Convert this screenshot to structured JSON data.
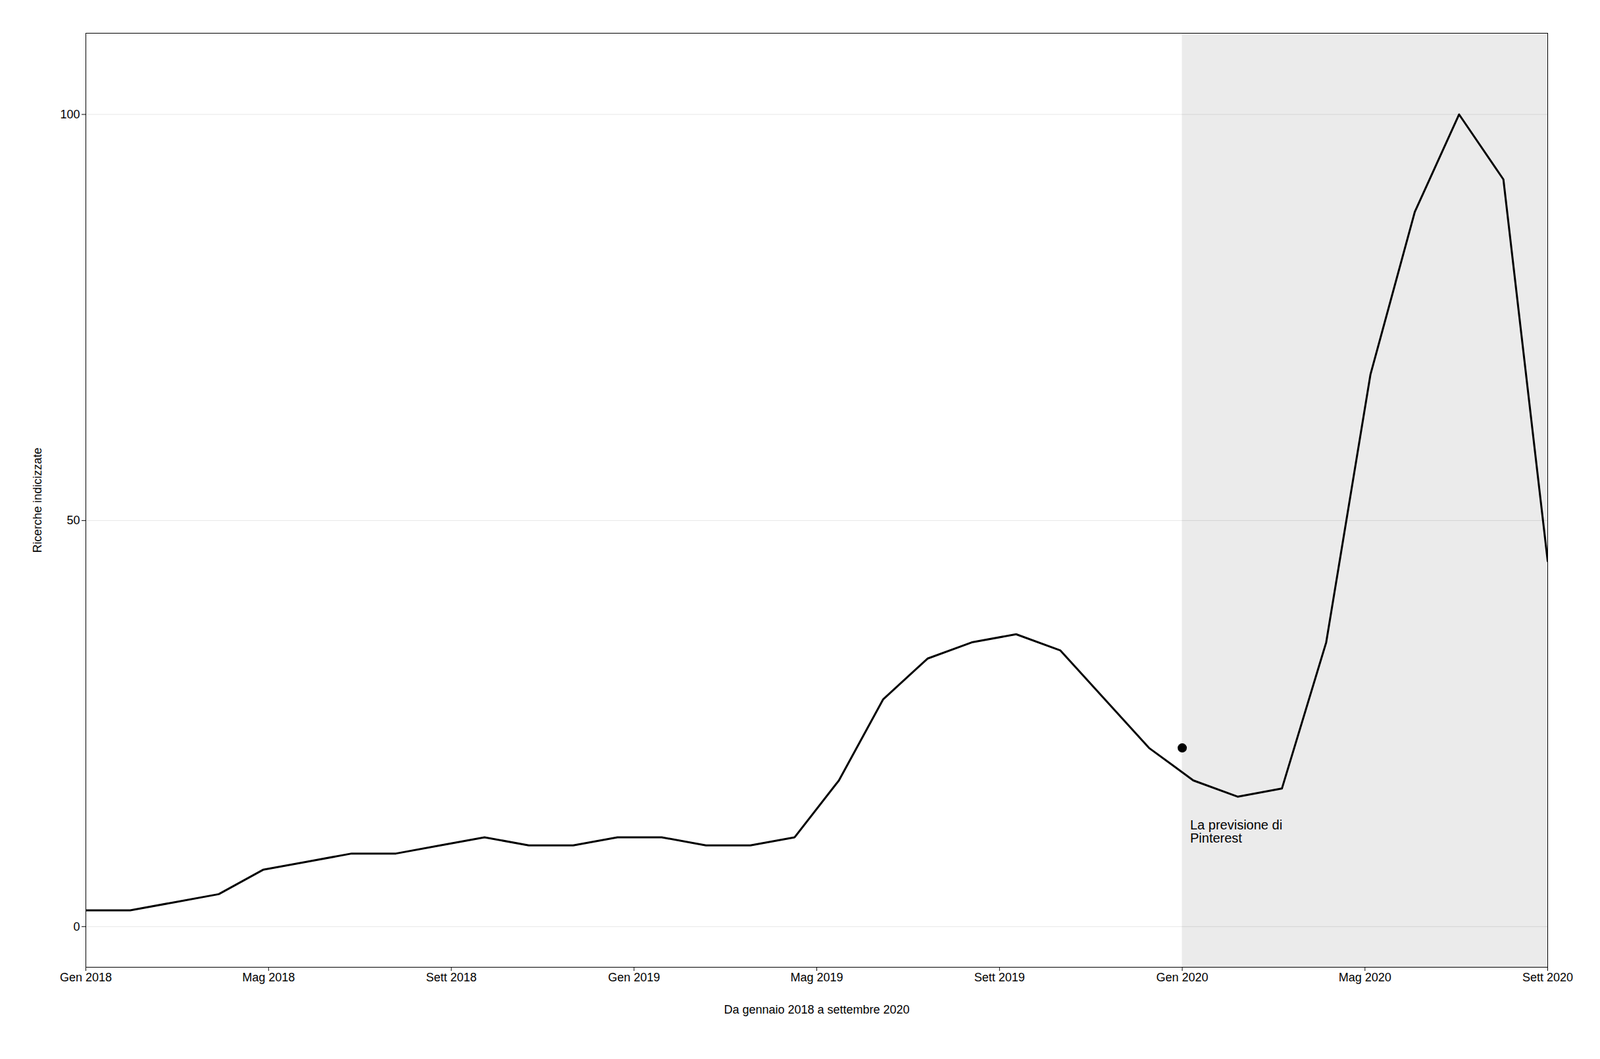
{
  "chart_data": {
    "type": "line",
    "xlabel": "Da gennaio 2018 a settembre 2020",
    "ylabel": "Ricerche indicizzate",
    "x": [
      0,
      0.9696969696969697,
      1.9393939393939394,
      2.909090909090909,
      3.878787878787879,
      4.848484848484849,
      5.818181818181818,
      6.787878787878788,
      7.757575757575758,
      8.727272727272727,
      9.696969696969697,
      10.666666666666666,
      11.636363636363637,
      12.606060606060606,
      13.575757575757576,
      14.545454545454545,
      15.515151515151516,
      16.484848484848484,
      17.454545454545453,
      18.424242424242426,
      19.393939393939394,
      20.363636363636363,
      21.333333333333332,
      22.303030303030305,
      23.272727272727273,
      24.242424242424242,
      25.21212121212121,
      26.181818181818183,
      27.151515151515152,
      28.12121212121212,
      29.09090909090909,
      30.060606060606062,
      31.03030303030303,
      32
    ],
    "values": [
      2,
      2,
      3,
      4,
      7,
      8,
      9,
      9,
      10,
      11,
      10,
      10,
      11,
      11,
      10,
      10,
      11,
      18,
      28,
      33,
      35,
      36,
      34,
      28,
      22,
      18,
      16,
      17,
      35,
      68,
      88,
      100,
      92,
      45
    ],
    "xlim": [
      0,
      32
    ],
    "xticks": [
      {
        "value": 0,
        "label": "Gen 2018"
      },
      {
        "value": 4,
        "label": "Mag 2018"
      },
      {
        "value": 8,
        "label": "Sett 2018"
      },
      {
        "value": 12,
        "label": "Gen 2019"
      },
      {
        "value": 16,
        "label": "Mag 2019"
      },
      {
        "value": 20,
        "label": "Sett 2019"
      },
      {
        "value": 24,
        "label": "Gen 2020"
      },
      {
        "value": 28,
        "label": "Mag 2020"
      },
      {
        "value": 32,
        "label": "Sett 2020"
      }
    ],
    "ylim": [
      -5,
      110
    ],
    "yticks": [
      0,
      50,
      100
    ],
    "grid": true,
    "forecast_region": [
      24,
      32
    ],
    "annotations": [
      {
        "text": "La previsione di\nPinterest",
        "x": 24,
        "y": 22
      }
    ]
  }
}
